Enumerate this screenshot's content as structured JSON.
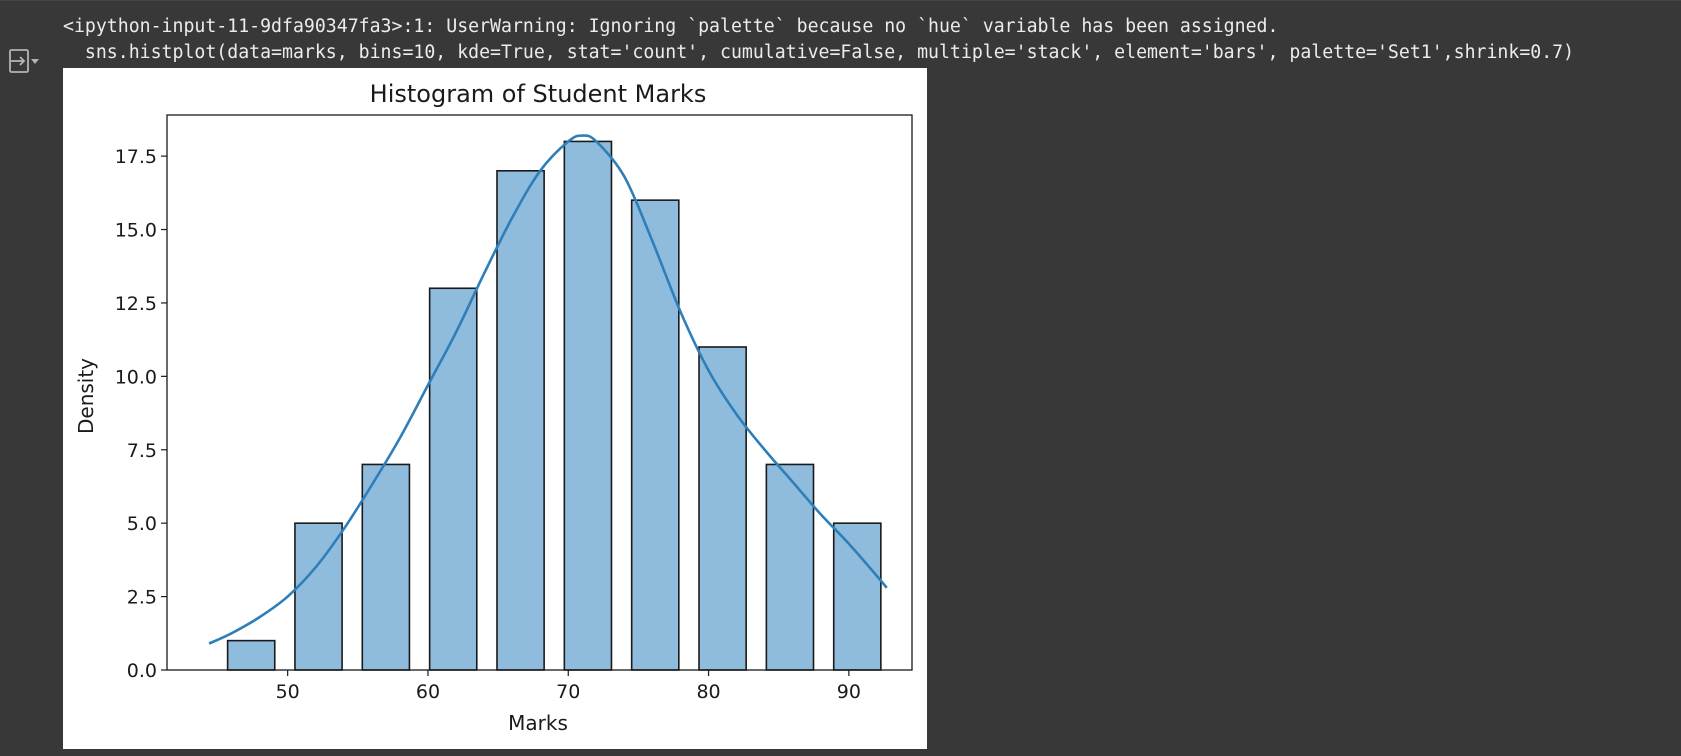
{
  "warning": {
    "line1": "<ipython-input-11-9dfa90347fa3>:1: UserWarning: Ignoring `palette` because no `hue` variable has been assigned.",
    "line2": "  sns.histplot(data=marks, bins=10, kde=True, stat='count', cumulative=False, multiple='stack', element='bars', palette='Set1',shrink=0.7)"
  },
  "toolbar": {
    "output_toggle_icon": "output-menu-icon"
  },
  "colors": {
    "background": "#383838",
    "bar_fill": "#8fbbdc",
    "bar_stroke": "#1a1a1a",
    "kde_line": "#2e7fb9"
  },
  "chart_data": {
    "type": "bar",
    "title": "Histogram of Student Marks",
    "xlabel": "Marks",
    "ylabel": "Density",
    "bin_edges": [
      45,
      49.8,
      54.6,
      59.4,
      64.2,
      69,
      73.8,
      78.6,
      83.4,
      88.2,
      93
    ],
    "counts": [
      1,
      5,
      7,
      13,
      17,
      18,
      16,
      11,
      7,
      5
    ],
    "shrink": 0.7,
    "xlim": [
      41.4,
      94.5
    ],
    "ylim": [
      0,
      18.9
    ],
    "xticks": [
      50,
      60,
      70,
      80,
      90
    ],
    "xtick_labels": [
      "50",
      "60",
      "70",
      "80",
      "90"
    ],
    "yticks": [
      0,
      2.5,
      5,
      7.5,
      10,
      12.5,
      15,
      17.5
    ],
    "ytick_labels": [
      "0.0",
      "2.5",
      "5.0",
      "7.5",
      "10.0",
      "12.5",
      "15.0",
      "17.5"
    ],
    "kde": {
      "x": [
        44.4,
        46,
        48,
        50,
        52,
        54,
        56,
        58,
        60,
        62,
        64,
        66,
        68,
        70,
        71,
        72,
        74,
        76,
        78,
        80,
        82,
        84,
        86,
        88,
        90,
        92,
        92.7
      ],
      "y": [
        0.9,
        1.25,
        1.8,
        2.5,
        3.5,
        4.8,
        6.3,
        7.9,
        9.7,
        11.5,
        13.5,
        15.4,
        17.0,
        18.0,
        18.2,
        18.0,
        16.8,
        14.6,
        12.2,
        10.2,
        8.7,
        7.5,
        6.4,
        5.3,
        4.3,
        3.2,
        2.8
      ]
    },
    "grid": false,
    "legend": "none"
  }
}
